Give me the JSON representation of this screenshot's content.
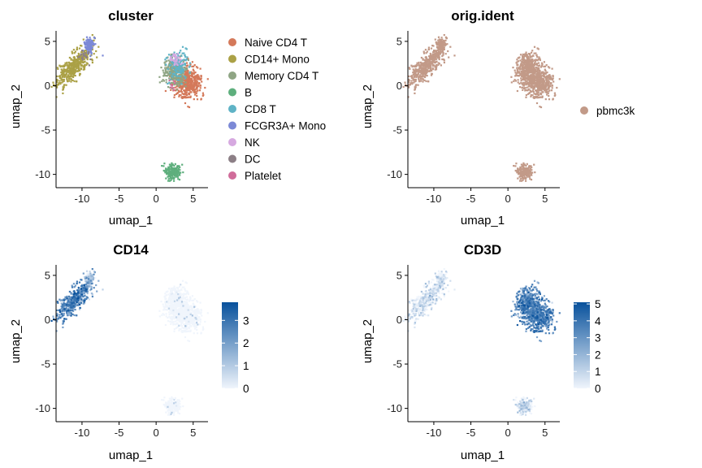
{
  "chart_data": [
    {
      "type": "scatter",
      "title": "cluster",
      "xlabel": "umap_1",
      "ylabel": "umap_2",
      "xlim": [
        -13.5,
        7
      ],
      "ylim": [
        -11.5,
        6
      ],
      "xticks": [
        -10,
        -5,
        0,
        5
      ],
      "yticks": [
        -10,
        -5,
        0,
        5
      ],
      "color_mode": "category",
      "grid": false,
      "legend": "right",
      "legend_entries": [
        {
          "label": "Naive CD4 T",
          "color": "#D4795A"
        },
        {
          "label": "CD14+ Mono",
          "color": "#ABA146"
        },
        {
          "label": "Memory CD4 T",
          "color": "#8FA584"
        },
        {
          "label": "B",
          "color": "#5EAF7D"
        },
        {
          "label": "CD8 T",
          "color": "#5FB3C6"
        },
        {
          "label": "FCGR3A+ Mono",
          "color": "#7C89D6"
        },
        {
          "label": "NK",
          "color": "#D6A9E0"
        },
        {
          "label": "DC",
          "color": "#8C7F86"
        },
        {
          "label": "Platelet",
          "color": "#D06C9A"
        }
      ]
    },
    {
      "type": "scatter",
      "title": "orig.ident",
      "xlabel": "umap_1",
      "ylabel": "umap_2",
      "xlim": [
        -13.5,
        7
      ],
      "ylim": [
        -11.5,
        6
      ],
      "xticks": [
        -10,
        -5,
        0,
        5
      ],
      "yticks": [
        -10,
        -5,
        0,
        5
      ],
      "color_mode": "single",
      "grid": false,
      "legend": "right",
      "legend_entries": [
        {
          "label": "pbmc3k",
          "color": "#C29A88"
        }
      ]
    },
    {
      "type": "scatter",
      "title": "CD14",
      "xlabel": "umap_1",
      "ylabel": "umap_2",
      "xlim": [
        -13.5,
        7
      ],
      "ylim": [
        -11.5,
        6
      ],
      "xticks": [
        -10,
        -5,
        0,
        5
      ],
      "yticks": [
        -10,
        -5,
        0,
        5
      ],
      "color_mode": "expression",
      "expression_gene": "CD14",
      "grid": false,
      "legend": "right",
      "colorbar": {
        "min": 0,
        "max": 3.8,
        "ticks": [
          0,
          1,
          2,
          3
        ],
        "low_color": "#F0F5FC",
        "high_color": "#08519C"
      }
    },
    {
      "type": "scatter",
      "title": "CD3D",
      "xlabel": "umap_1",
      "ylabel": "umap_2",
      "xlim": [
        -13.5,
        7
      ],
      "ylim": [
        -11.5,
        6
      ],
      "xticks": [
        -10,
        -5,
        0,
        5
      ],
      "yticks": [
        -10,
        -5,
        0,
        5
      ],
      "color_mode": "expression",
      "expression_gene": "CD3D",
      "grid": false,
      "legend": "right",
      "colorbar": {
        "min": 0,
        "max": 5.1,
        "ticks": [
          0,
          1,
          2,
          3,
          4,
          5
        ],
        "low_color": "#F0F5FC",
        "high_color": "#08519C"
      }
    }
  ],
  "embedding": {
    "clusters": [
      {
        "name": "Naive CD4 T",
        "n": 420,
        "cx": 4.3,
        "cy": 0.3,
        "sx": 0.95,
        "sy": 0.9,
        "rot": -0.55,
        "CD14": 0.0,
        "CD3D": 3.3
      },
      {
        "name": "Memory CD4 T",
        "n": 300,
        "cx": 2.6,
        "cy": 1.6,
        "sx": 0.8,
        "sy": 0.75,
        "rot": -0.3,
        "CD14": 0.0,
        "CD3D": 3.3
      },
      {
        "name": "CD8 T",
        "n": 150,
        "cx": 2.9,
        "cy": 2.3,
        "sx": 0.65,
        "sy": 0.8,
        "rot": 0.0,
        "CD14": 0.0,
        "CD3D": 2.7
      },
      {
        "name": "NK",
        "n": 40,
        "cx": 2.6,
        "cy": 2.9,
        "sx": 0.4,
        "sy": 0.45,
        "rot": 0.0,
        "CD14": 0.0,
        "CD3D": 0.2
      },
      {
        "name": "CD14+ Mono",
        "n": 440,
        "cx": -11.0,
        "cy": 2.2,
        "sx": 1.6,
        "sy": 0.55,
        "rot": 0.75,
        "CD14": 2.3,
        "CD3D": 0.1
      },
      {
        "name": "FCGR3A+ Mono",
        "n": 110,
        "cx": -9.0,
        "cy": 4.5,
        "sx": 0.35,
        "sy": 0.45,
        "rot": 0.0,
        "CD14": 0.6,
        "CD3D": 0.1
      },
      {
        "name": "B",
        "n": 230,
        "cx": 2.2,
        "cy": -9.7,
        "sx": 0.55,
        "sy": 0.4,
        "rot": 0.0,
        "CD14": 0.0,
        "CD3D": 0.1
      },
      {
        "name": "DC",
        "n": 20,
        "cx": -9.6,
        "cy": 3.3,
        "sx": 0.5,
        "sy": 0.4,
        "rot": 0.0,
        "CD14": 0.4,
        "CD3D": 0.1
      },
      {
        "name": "Platelet",
        "n": 8,
        "cx": 2.1,
        "cy": 0.2,
        "sx": 0.3,
        "sy": 0.3,
        "rot": 0.0,
        "CD14": 0.0,
        "CD3D": 0.0
      }
    ]
  }
}
